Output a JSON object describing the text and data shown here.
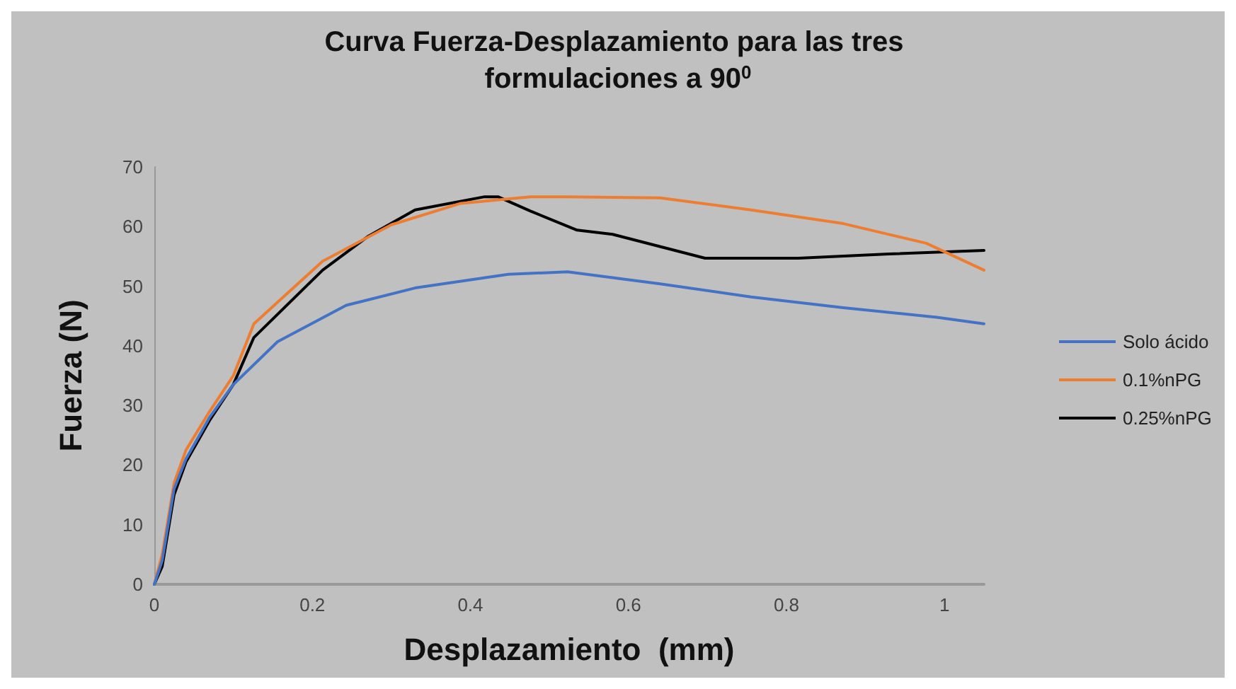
{
  "chart_data": {
    "type": "line",
    "title": "Curva Fuerza-Desplazamiento para las tres formulaciones a 90$^{0}$",
    "xlabel": "Desplazamiento  (mm)",
    "ylabel": "Fuerza (N)",
    "xlim": [
      0,
      1.05
    ],
    "xticks": [
      0,
      0.2,
      0.4,
      0.6,
      0.8,
      1
    ],
    "ylim": [
      0,
      70
    ],
    "yticks": [
      0,
      10,
      20,
      30,
      40,
      50,
      60,
      70
    ],
    "grid": false,
    "legend": "right",
    "marker": "none",
    "line_style": "solid",
    "series": [
      {
        "name": "Solo ácido",
        "color": "#4472c4",
        "x": [
          0,
          0.01,
          0.025,
          0.04,
          0.07,
          0.1,
          0.156,
          0.243,
          0.33,
          0.448,
          0.523,
          0.64,
          0.755,
          0.872,
          0.99,
          1.05
        ],
        "values": [
          0,
          4,
          16,
          21,
          28,
          33.5,
          40.7,
          46.8,
          49.7,
          52,
          52.4,
          50.4,
          48.2,
          46.4,
          44.8,
          43.7
        ]
      },
      {
        "name": "0.1%nPG",
        "color": "#ed7d31",
        "x": [
          0,
          0.01,
          0.025,
          0.04,
          0.07,
          0.1,
          0.126,
          0.213,
          0.3,
          0.388,
          0.476,
          0.523,
          0.64,
          0.755,
          0.872,
          0.977,
          1.05
        ],
        "values": [
          0,
          5,
          17,
          22.5,
          29,
          35,
          43.7,
          54.2,
          60.3,
          63.9,
          65,
          65,
          64.8,
          62.8,
          60.5,
          57.2,
          52.7
        ]
      },
      {
        "name": "0.25%nPG",
        "color": "#000000",
        "x": [
          0,
          0.01,
          0.025,
          0.04,
          0.07,
          0.1,
          0.126,
          0.213,
          0.27,
          0.33,
          0.418,
          0.435,
          0.476,
          0.535,
          0.58,
          0.697,
          0.815,
          0.93,
          1.05
        ],
        "values": [
          0,
          3,
          15,
          20.5,
          27.5,
          33.5,
          41.4,
          52.7,
          58.3,
          62.8,
          65,
          65,
          62.6,
          59.4,
          58.7,
          54.7,
          54.7,
          55.4,
          56
        ]
      }
    ]
  }
}
